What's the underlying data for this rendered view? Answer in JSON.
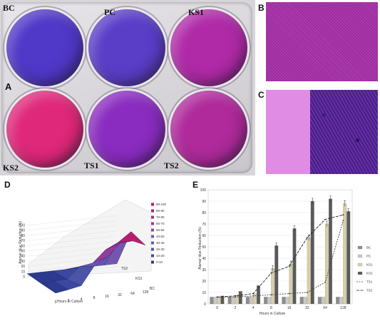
{
  "panels": {
    "a": "A",
    "b": "B",
    "c": "C",
    "d": "D",
    "e": "E"
  },
  "wells": [
    {
      "label": "BC",
      "color": "#5038c8"
    },
    {
      "label": "PC",
      "color": "#5a3ec8"
    },
    {
      "label": "KS1",
      "color": "#b02aa8"
    },
    {
      "label": "KS2",
      "color": "#e0287a"
    },
    {
      "label": "TS1",
      "color": "#8a2cc0"
    },
    {
      "label": "TS2",
      "color": "#b02a9c"
    }
  ],
  "chart_d": {
    "type": "surface",
    "ylabel": "Alamar blue Reduction (%)",
    "xlabel": "Hours in Culture",
    "z_ticks": [
      "0",
      "10",
      "20",
      "30",
      "40",
      "50",
      "60",
      "70",
      "80",
      "90",
      "100"
    ],
    "x_ticks": [
      "0",
      "2",
      "4",
      "8",
      "16",
      "32",
      "64",
      "128"
    ],
    "depth_ticks": [
      "BC",
      "KS1",
      "TS2"
    ],
    "legend": [
      "90-100",
      "80-90",
      "70-80",
      "60-70",
      "50-60",
      "40-50",
      "30-40",
      "20-30",
      "10-20",
      "0-10"
    ],
    "legend_colors": [
      "#c4145a",
      "#b81e6e",
      "#a82c88",
      "#983a9c",
      "#8848a8",
      "#7456b0",
      "#6058b0",
      "#4c54a8",
      "#3c48a0",
      "#2c3a90"
    ]
  },
  "chart_data": {
    "type": "bar",
    "ylabel": "Alamar blue Reduction (%)",
    "xlabel": "Hours in Culture",
    "ylim": [
      0,
      100
    ],
    "y_ticks": [
      0,
      10,
      20,
      30,
      40,
      50,
      60,
      70,
      80,
      90,
      100
    ],
    "categories": [
      "0",
      "2",
      "4",
      "8",
      "16",
      "32",
      "64",
      "128"
    ],
    "series": [
      {
        "name": "BC",
        "kind": "bar",
        "color": "#8c8c8c",
        "values": [
          6,
          6,
          6,
          6,
          6,
          6,
          6,
          6
        ]
      },
      {
        "name": "PC",
        "kind": "bar",
        "color": "#c8c8c8",
        "values": [
          6,
          6,
          6,
          6,
          6,
          6,
          6,
          6
        ]
      },
      {
        "name": "KS1",
        "kind": "bar",
        "color": "#d8cfa8",
        "values": [
          6,
          8,
          9,
          31,
          35,
          58,
          70,
          88
        ]
      },
      {
        "name": "KS2",
        "kind": "bar",
        "color": "#5a5a5a",
        "values": [
          7,
          11,
          16,
          51,
          66,
          90,
          92,
          81
        ]
      },
      {
        "name": "TS1",
        "kind": "line",
        "color": "#444444",
        "values": [
          6,
          6,
          7,
          8,
          9,
          10,
          19,
          73
        ]
      },
      {
        "name": "TS2",
        "kind": "line",
        "color": "#222222",
        "values": [
          6,
          7,
          9,
          27,
          33,
          58,
          74,
          78
        ]
      }
    ]
  }
}
